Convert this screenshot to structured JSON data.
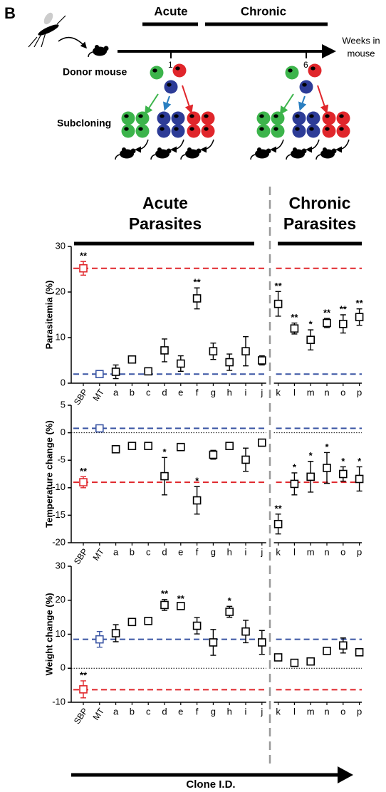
{
  "schematic": {
    "panel_label": "B",
    "acute": "Acute",
    "chronic": "Chronic",
    "axis_label": [
      "Weeks in",
      "mouse"
    ],
    "ticks": [
      "1",
      "6"
    ],
    "donor": "Donor mouse",
    "subcloning": "Subcloning"
  },
  "headers": {
    "acute": [
      "Acute",
      "Parasites"
    ],
    "chronic": [
      "Chronic",
      "Parasites"
    ],
    "x_axis": "Clone I.D."
  },
  "chart_data": [
    {
      "type": "errorbar",
      "y_label": "Parasitemia (%)",
      "categories": [
        "SBP",
        "MT",
        "a",
        "b",
        "c",
        "d",
        "e",
        "f",
        "g",
        "h",
        "i",
        "j",
        "k",
        "l",
        "m",
        "n",
        "o",
        "p"
      ],
      "values": [
        25.2,
        2,
        2.5,
        5.2,
        2.6,
        7.2,
        4.3,
        18.6,
        7,
        4.6,
        7,
        5,
        17.4,
        12,
        9.5,
        13.2,
        13,
        14.5
      ],
      "errors": [
        1.5,
        0.3,
        1.5,
        0.5,
        0.3,
        2.5,
        1.7,
        2.3,
        1.8,
        1.8,
        3.2,
        1,
        2.7,
        1.2,
        2.2,
        1,
        2,
        1.8
      ],
      "colors": [
        "#e0262b",
        "#3a55a4",
        "#000000",
        "#000000",
        "#000000",
        "#000000",
        "#000000",
        "#000000",
        "#000000",
        "#000000",
        "#000000",
        "#000000",
        "#000000",
        "#000000",
        "#000000",
        "#000000",
        "#000000",
        "#000000"
      ],
      "stars": [
        "**",
        null,
        null,
        null,
        null,
        null,
        null,
        "**",
        null,
        null,
        null,
        null,
        "**",
        "**",
        "*",
        "**",
        "**",
        "**"
      ],
      "ref_lines": [
        {
          "value": 25.2,
          "color": "#e0262b"
        },
        {
          "value": 2,
          "color": "#3a55a4"
        }
      ],
      "zero_line": false,
      "ylim": [
        0,
        30
      ],
      "yticks": [
        0,
        10,
        20,
        30
      ]
    },
    {
      "type": "errorbar",
      "y_label": "Temperature change (%)",
      "categories": [
        "SBP",
        "MT",
        "a",
        "b",
        "c",
        "d",
        "e",
        "f",
        "g",
        "h",
        "i",
        "j",
        "k",
        "l",
        "m",
        "n",
        "o",
        "p"
      ],
      "values": [
        -9,
        0.8,
        -3,
        -2.4,
        -2.4,
        -7.9,
        -2.6,
        -12.3,
        -4,
        -2.4,
        -4.9,
        -1.8,
        -16.6,
        -9.3,
        -8,
        -6.4,
        -7.5,
        -8.4
      ],
      "errors": [
        1,
        0.5,
        0.3,
        0.3,
        0.3,
        3.4,
        0.3,
        2.5,
        0.8,
        0.3,
        2.1,
        0.6,
        1.8,
        2,
        2.8,
        2.8,
        1.3,
        2.2
      ],
      "colors": [
        "#e0262b",
        "#3a55a4",
        "#000000",
        "#000000",
        "#000000",
        "#000000",
        "#000000",
        "#000000",
        "#000000",
        "#000000",
        "#000000",
        "#000000",
        "#000000",
        "#000000",
        "#000000",
        "#000000",
        "#000000",
        "#000000"
      ],
      "stars": [
        "**",
        null,
        null,
        null,
        null,
        "*",
        null,
        "*",
        null,
        null,
        null,
        null,
        "**",
        "*",
        "*",
        "*",
        "*",
        "*"
      ],
      "ref_lines": [
        {
          "value": 0.8,
          "color": "#3a55a4"
        },
        {
          "value": -9,
          "color": "#e0262b"
        }
      ],
      "zero_line": true,
      "ylim": [
        -20,
        5
      ],
      "yticks": [
        -20,
        -15,
        -10,
        -5,
        0,
        5
      ]
    },
    {
      "type": "errorbar",
      "y_label": "Weight change (%)",
      "categories": [
        "SBP",
        "MT",
        "a",
        "b",
        "c",
        "d",
        "e",
        "f",
        "g",
        "h",
        "i",
        "j",
        "k",
        "l",
        "m",
        "n",
        "o",
        "p"
      ],
      "values": [
        -6.2,
        8.5,
        10.3,
        13.6,
        13.9,
        18.6,
        18.3,
        12.5,
        7.6,
        16.6,
        10.8,
        7.6,
        3.2,
        1.6,
        2,
        5.1,
        6.7,
        4.7
      ],
      "errors": [
        2.5,
        2.3,
        2.5,
        0.5,
        1,
        1.6,
        0.5,
        2.4,
        3.8,
        1.6,
        3.3,
        3.5,
        0.3,
        0.3,
        0.8,
        0.3,
        2.2,
        0.6
      ],
      "colors": [
        "#e0262b",
        "#3a55a4",
        "#000000",
        "#000000",
        "#000000",
        "#000000",
        "#000000",
        "#000000",
        "#000000",
        "#000000",
        "#000000",
        "#000000",
        "#000000",
        "#000000",
        "#000000",
        "#000000",
        "#000000",
        "#000000"
      ],
      "stars": [
        "**",
        null,
        null,
        null,
        null,
        "**",
        "**",
        null,
        null,
        "*",
        null,
        null,
        null,
        null,
        null,
        null,
        null,
        null
      ],
      "ref_lines": [
        {
          "value": 8.5,
          "color": "#3a55a4"
        },
        {
          "value": -6.3,
          "color": "#e0262b"
        }
      ],
      "zero_line": true,
      "ylim": [
        -10,
        30
      ],
      "yticks": [
        -10,
        0,
        10,
        20,
        30
      ]
    }
  ]
}
